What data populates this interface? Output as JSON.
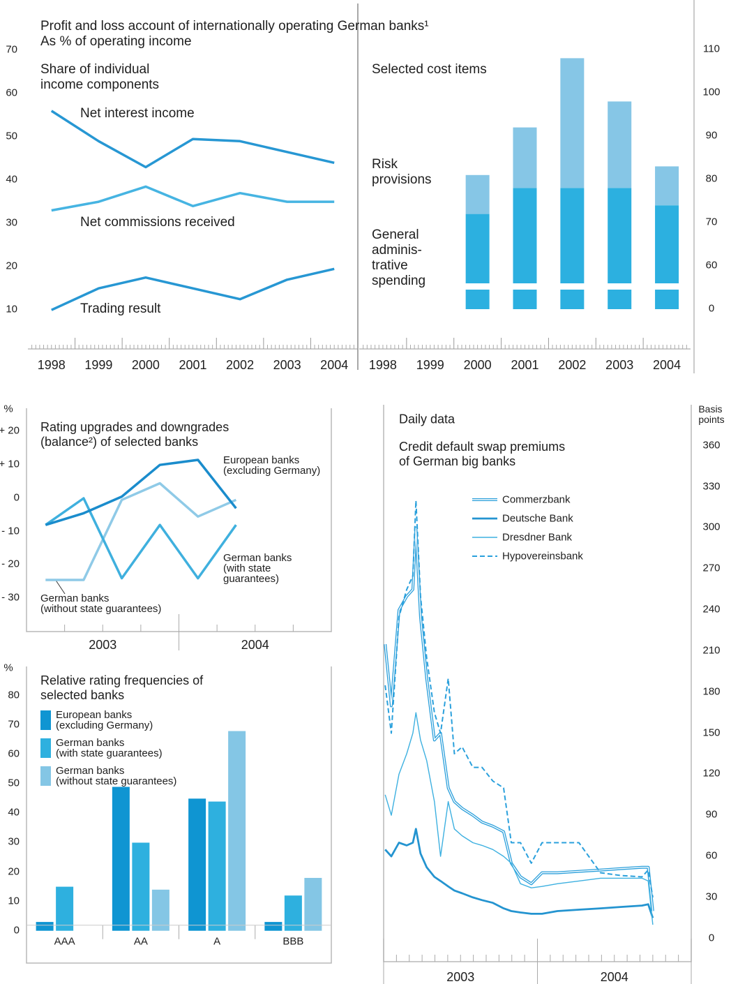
{
  "chart_data": [
    {
      "type": "line",
      "title": "Profit and loss account of internationally operating German banks¹",
      "subtitle": "As % of operating income",
      "panel_title": "Share of individual\nincome components",
      "categories": [
        "1998",
        "1999",
        "2000",
        "2001",
        "2002",
        "2003",
        "2004"
      ],
      "series": [
        {
          "name": "Net interest income",
          "color": "#2797d3",
          "values": [
            56,
            49,
            43,
            49.5,
            49,
            46.5,
            44
          ]
        },
        {
          "name": "Net commissions received",
          "color": "#46b4e2",
          "values": [
            33,
            35,
            38.5,
            34,
            37,
            35,
            35
          ]
        },
        {
          "name": "Trading result",
          "color": "#2797d3",
          "values": [
            10,
            15,
            17.5,
            15,
            12.5,
            17,
            19.5
          ]
        }
      ],
      "ylim": [
        1,
        80
      ],
      "yticks": [
        10,
        20,
        30,
        40,
        50,
        60,
        70
      ]
    },
    {
      "type": "bar",
      "stacked": true,
      "axis_break": true,
      "y_axis_side": "right",
      "panel_title": "Selected cost items",
      "categories": [
        "1998",
        "1999",
        "2000",
        "2001",
        "2002",
        "2003",
        "2004"
      ],
      "series": [
        {
          "name": "General\nadminis-\ntrative\nspending",
          "color": "#2cb0e0",
          "values": [
            null,
            null,
            72,
            78,
            78,
            78,
            74
          ]
        },
        {
          "name": "Risk\nprovisions",
          "color": "#86c6e6",
          "values": [
            null,
            null,
            9,
            14,
            30,
            20,
            9
          ]
        }
      ],
      "ylim": [
        0,
        119
      ],
      "yticks": [
        0,
        60,
        70,
        80,
        90,
        100,
        110
      ]
    },
    {
      "type": "line",
      "title": "Rating upgrades and downgrades\n(balance²) of selected banks",
      "y_unit": "%",
      "categories": [
        null,
        null,
        null,
        null,
        null,
        null,
        null,
        null
      ],
      "x_labels": [
        "2003",
        "2004"
      ],
      "series": [
        {
          "name": "German banks\n(without state guarantees)",
          "color": "#8fcae7",
          "values": [
            -24.5,
            -24.5,
            -0.5,
            4.5,
            -5.5,
            -0.5,
            null,
            null
          ]
        },
        {
          "name": "German banks\n(with state\nguarantees)",
          "color": "#3fb0de",
          "values": [
            -8,
            0,
            -24,
            -8,
            -24,
            -8,
            null,
            null
          ]
        },
        {
          "name": "European banks\n(excluding Germany)",
          "color": "#1a8ccc",
          "values": [
            -8,
            -4.5,
            0.5,
            10,
            11.5,
            -3,
            null,
            null
          ]
        }
      ],
      "ylim": [
        -40,
        27
      ],
      "yticks": [
        {
          "value": 20,
          "label": "+ 20"
        },
        {
          "value": 10,
          "label": "+ 10"
        },
        0,
        {
          "value": -10,
          "label": "- 10"
        },
        {
          "value": -20,
          "label": "- 20"
        },
        {
          "value": -30,
          "label": "- 30"
        }
      ]
    },
    {
      "type": "bar",
      "title": "Relative rating frequencies of\nselected banks",
      "y_unit": "%",
      "legend": "upper left",
      "categories": [
        "AAA",
        "AA",
        "A",
        "BBB"
      ],
      "series": [
        {
          "name": "European banks\n(excluding Germany)",
          "color": "#0f95d2",
          "values": [
            3,
            49,
            45,
            3
          ]
        },
        {
          "name": "German banks\n(with state guarantees)",
          "color": "#2eb0df",
          "values": [
            15,
            30,
            44,
            12
          ]
        },
        {
          "name": "German banks\n(without state guarantees)",
          "color": "#84c6e5",
          "values": [
            null,
            14,
            68,
            18
          ]
        }
      ],
      "ylim": [
        -11,
        90
      ],
      "yticks": [
        0,
        10,
        20,
        30,
        40,
        50,
        60,
        70,
        80
      ]
    },
    {
      "type": "line",
      "subtitle": "Daily data",
      "title": "Credit default swap premiums\nof German big banks",
      "y_unit": "Basis\npoints",
      "y_axis_side": "right",
      "legend": "upper center",
      "x": [
        2003.01,
        2003.05,
        2003.1,
        2003.15,
        2003.19,
        2003.21,
        2003.24,
        2003.28,
        2003.33,
        2003.37,
        2003.42,
        2003.46,
        2003.51,
        2003.58,
        2003.64,
        2003.71,
        2003.78,
        2003.83,
        2003.89,
        2003.96,
        2004.03,
        2004.13,
        2004.27,
        2004.41,
        2004.54,
        2004.68,
        2004.72,
        2004.75
      ],
      "xlim": [
        2003,
        2005
      ],
      "xticks": [
        2003,
        2004,
        2005
      ],
      "x_labels": [
        "2003",
        "2004"
      ],
      "series": [
        {
          "name": "Commerzbank",
          "color": "#2a9fdb",
          "style": "double",
          "values": [
            215,
            170,
            240,
            250,
            255,
            300,
            235,
            190,
            145,
            150,
            110,
            100,
            95,
            90,
            85,
            82,
            78,
            55,
            45,
            40,
            48,
            48,
            49,
            50,
            51,
            52,
            52,
            20
          ]
        },
        {
          "name": "Deutsche Bank",
          "color": "#2494d0",
          "style": "thick",
          "values": [
            65,
            60,
            70,
            68,
            70,
            80,
            62,
            52,
            45,
            42,
            38,
            35,
            33,
            30,
            28,
            26,
            22,
            20,
            19,
            18,
            18,
            20,
            21,
            22,
            23,
            24,
            25,
            15
          ]
        },
        {
          "name": "Dresdner Bank",
          "color": "#3db0e0",
          "style": "thin",
          "values": [
            105,
            90,
            120,
            135,
            150,
            165,
            145,
            130,
            100,
            60,
            100,
            80,
            75,
            70,
            68,
            65,
            60,
            55,
            40,
            37,
            38,
            40,
            42,
            44,
            44,
            44,
            42,
            10
          ]
        },
        {
          "name": "Hypovereinsbank",
          "color": "#2aa0dc",
          "style": "dashed",
          "values": [
            185,
            150,
            235,
            255,
            265,
            320,
            250,
            205,
            165,
            150,
            190,
            135,
            140,
            125,
            125,
            115,
            110,
            70,
            70,
            55,
            70,
            70,
            70,
            48,
            46,
            45,
            50,
            30
          ]
        }
      ],
      "ylim": [
        -18,
        390
      ],
      "yticks": [
        0,
        30,
        60,
        90,
        120,
        150,
        180,
        210,
        240,
        270,
        300,
        330,
        360
      ]
    }
  ]
}
